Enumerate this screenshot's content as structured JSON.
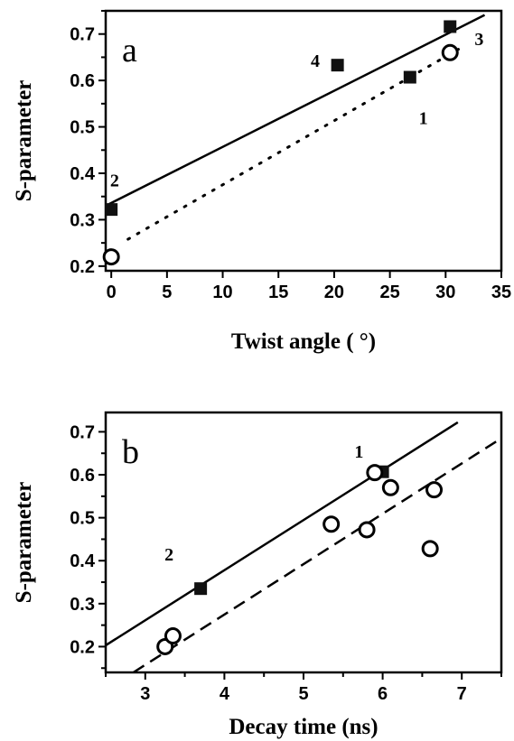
{
  "chart_data": [
    {
      "type": "scatter",
      "panel_label": "a",
      "xlabel": "Twist angle ( °)",
      "ylabel": "S-parameter",
      "xlim": [
        -0.5,
        35
      ],
      "ylim": [
        0.19,
        0.75
      ],
      "xticks": [
        "0",
        "5",
        "10",
        "15",
        "20",
        "25",
        "30",
        "35"
      ],
      "yticks": [
        "0.2",
        "0.3",
        "0.4",
        "0.5",
        "0.6",
        "0.7"
      ],
      "series": [
        {
          "marker": "square",
          "points": [
            [
              0,
              0.322
            ],
            [
              20.3,
              0.633
            ],
            [
              26.8,
              0.607
            ],
            [
              30.4,
              0.716
            ]
          ]
        },
        {
          "marker": "circle",
          "points": [
            [
              0,
              0.22
            ],
            [
              30.4,
              0.66
            ]
          ]
        }
      ],
      "fit_lines": [
        {
          "style": "solid",
          "x": [
            -0.5,
            33.5
          ],
          "y": [
            0.33,
            0.741
          ]
        },
        {
          "style": "dotted",
          "x": [
            1.5,
            31.5
          ],
          "y": [
            0.258,
            0.672
          ]
        }
      ],
      "point_labels": [
        {
          "text": "2",
          "x": 0.3,
          "y": 0.385
        },
        {
          "text": "4",
          "x": 18.3,
          "y": 0.643
        },
        {
          "text": "1",
          "x": 28.0,
          "y": 0.52
        },
        {
          "text": "3",
          "x": 33.0,
          "y": 0.69
        }
      ],
      "grid": false
    },
    {
      "type": "scatter",
      "panel_label": "b",
      "xlabel": "Decay time (ns)",
      "ylabel": "S-parameter",
      "xlim": [
        2.5,
        7.5
      ],
      "ylim": [
        0.14,
        0.745
      ],
      "xticks": [
        "3",
        "4",
        "5",
        "6",
        "7"
      ],
      "yticks": [
        "0.2",
        "0.3",
        "0.4",
        "0.5",
        "0.6",
        "0.7"
      ],
      "series": [
        {
          "marker": "square",
          "points": [
            [
              3.7,
              0.335
            ],
            [
              6.0,
              0.607
            ]
          ]
        },
        {
          "marker": "circle",
          "points": [
            [
              3.25,
              0.2
            ],
            [
              3.35,
              0.225
            ],
            [
              5.35,
              0.485
            ],
            [
              5.8,
              0.472
            ],
            [
              5.9,
              0.605
            ],
            [
              6.1,
              0.57
            ],
            [
              6.6,
              0.428
            ],
            [
              6.65,
              0.565
            ]
          ]
        }
      ],
      "fit_lines": [
        {
          "style": "solid",
          "x": [
            2.5,
            6.95
          ],
          "y": [
            0.203,
            0.722
          ]
        },
        {
          "style": "dashed",
          "x": [
            2.85,
            7.5
          ],
          "y": [
            0.14,
            0.685
          ]
        }
      ],
      "point_labels": [
        {
          "text": "1",
          "x": 5.7,
          "y": 0.655
        },
        {
          "text": "2",
          "x": 3.3,
          "y": 0.415
        }
      ],
      "grid": false
    }
  ]
}
